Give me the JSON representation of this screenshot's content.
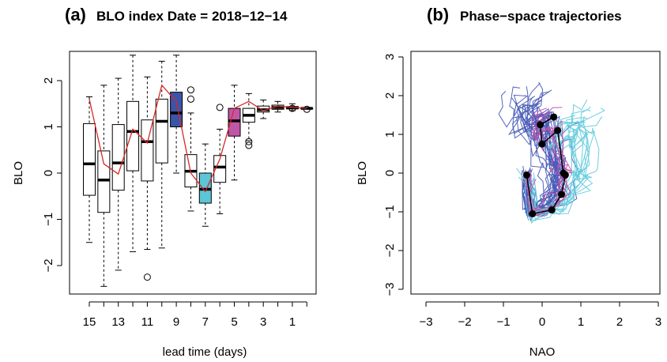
{
  "chart_data": [
    {
      "type": "box",
      "title_prefix": "(a)",
      "title": "BLO  index Date = 2018−12−14",
      "xlabel": "lead time (days)",
      "ylabel": "BLO",
      "ylim": [
        -3,
        3
      ],
      "yticks": [
        "−2",
        "−1",
        "0",
        "1",
        "2"
      ],
      "x_tick_labels": [
        "15",
        "13",
        "11",
        "9",
        "7",
        "5",
        "3",
        "1"
      ],
      "lead_times": [
        15,
        14,
        13,
        12,
        11,
        10,
        9,
        8,
        7,
        6,
        5,
        4,
        3,
        2,
        1,
        0
      ],
      "boxes": [
        {
          "lead": 15,
          "whisker_low": -1.5,
          "q1": -0.48,
          "median": 0.2,
          "q3": 1.07,
          "whisker_high": 1.65,
          "outliers": []
        },
        {
          "lead": 14,
          "whisker_low": -2.45,
          "q1": -0.85,
          "median": -0.15,
          "q3": 0.48,
          "whisker_high": 1.9,
          "outliers": []
        },
        {
          "lead": 13,
          "whisker_low": -2.1,
          "q1": -0.37,
          "median": 0.22,
          "q3": 1.05,
          "whisker_high": 2.05,
          "outliers": []
        },
        {
          "lead": 12,
          "whisker_low": -1.7,
          "q1": 0.05,
          "median": 0.9,
          "q3": 1.55,
          "whisker_high": 2.55,
          "outliers": []
        },
        {
          "lead": 11,
          "whisker_low": -1.65,
          "q1": -0.17,
          "median": 0.68,
          "q3": 1.15,
          "whisker_high": 2.08,
          "outliers": [
            -2.25
          ]
        },
        {
          "lead": 10,
          "whisker_low": -1.62,
          "q1": 0.22,
          "median": 1.12,
          "q3": 1.6,
          "whisker_high": 2.42,
          "outliers": []
        },
        {
          "lead": 9,
          "whisker_low": 0.0,
          "q1": 1.0,
          "median": 1.3,
          "q3": 1.75,
          "whisker_high": 2.55,
          "outliers": [],
          "fill": "#3a54a8"
        },
        {
          "lead": 8,
          "whisker_low": -0.82,
          "q1": -0.3,
          "median": 0.04,
          "q3": 0.4,
          "whisker_high": 1.3,
          "outliers": [
            1.8,
            1.6
          ]
        },
        {
          "lead": 7,
          "whisker_low": -1.15,
          "q1": -0.65,
          "median": -0.35,
          "q3": 0.0,
          "whisker_high": 0.63,
          "outliers": [],
          "fill": "#5cc6d8"
        },
        {
          "lead": 6,
          "whisker_low": -0.88,
          "q1": -0.2,
          "median": 0.13,
          "q3": 0.38,
          "whisker_high": 0.95,
          "outliers": [
            1.42
          ]
        },
        {
          "lead": 5,
          "whisker_low": -0.15,
          "q1": 0.8,
          "median": 1.13,
          "q3": 1.4,
          "whisker_high": 1.9,
          "outliers": [],
          "fill": "#c056a8"
        },
        {
          "lead": 4,
          "whisker_low": 0.7,
          "q1": 1.1,
          "median": 1.25,
          "q3": 1.4,
          "whisker_high": 1.72,
          "outliers": [
            0.68,
            0.6
          ]
        },
        {
          "lead": 3,
          "whisker_low": 1.18,
          "q1": 1.32,
          "median": 1.37,
          "q3": 1.45,
          "whisker_high": 1.58,
          "outliers": []
        },
        {
          "lead": 2,
          "whisker_low": 1.32,
          "q1": 1.38,
          "median": 1.42,
          "q3": 1.47,
          "whisker_high": 1.55,
          "outliers": []
        },
        {
          "lead": 1,
          "whisker_low": 1.35,
          "q1": 1.39,
          "median": 1.41,
          "q3": 1.44,
          "whisker_high": 1.5,
          "outliers": [
            1.4
          ]
        },
        {
          "lead": 0,
          "whisker_low": 1.4,
          "q1": 1.4,
          "median": 1.4,
          "q3": 1.4,
          "whisker_high": 1.4,
          "outliers": [
            1.38
          ]
        }
      ],
      "observed_line": {
        "color": "#d62828",
        "values": [
          1.6,
          0.2,
          -0.02,
          0.95,
          0.65,
          1.9,
          1.55,
          0.0,
          -0.4,
          0.3,
          1.4,
          1.55,
          1.35,
          1.45,
          1.42,
          1.4
        ]
      },
      "box_outline_color": "#000000",
      "grid": false
    },
    {
      "type": "line",
      "title_prefix": "(b)",
      "title": "Phase−space trajectories",
      "xlabel": "NAO",
      "ylabel": "BLO",
      "xlim": [
        -3,
        3
      ],
      "ylim": [
        -3,
        3
      ],
      "xticks": [
        "−3",
        "−2",
        "−1",
        "0",
        "1",
        "2",
        "3"
      ],
      "yticks": [
        "−3",
        "−2",
        "−1",
        "0",
        "1",
        "2",
        "3"
      ],
      "ensemble_colors": {
        "dark_blue": "#4a5db8",
        "cyan": "#66ccdd",
        "magenta": "#c64fa6"
      },
      "ensemble_counts": {
        "dark_blue": 26,
        "cyan": 12,
        "magenta": 5
      },
      "mean_trajectory": {
        "color": "#000000",
        "nao": [
          0.3,
          -0.05,
          0.0,
          0.4,
          0.55,
          0.6,
          0.5,
          0.25,
          -0.25,
          -0.4
        ],
        "blo": [
          1.45,
          1.25,
          0.75,
          1.1,
          0.0,
          -0.05,
          -0.55,
          -0.95,
          -1.05,
          -0.05
        ]
      },
      "grid": false
    }
  ]
}
